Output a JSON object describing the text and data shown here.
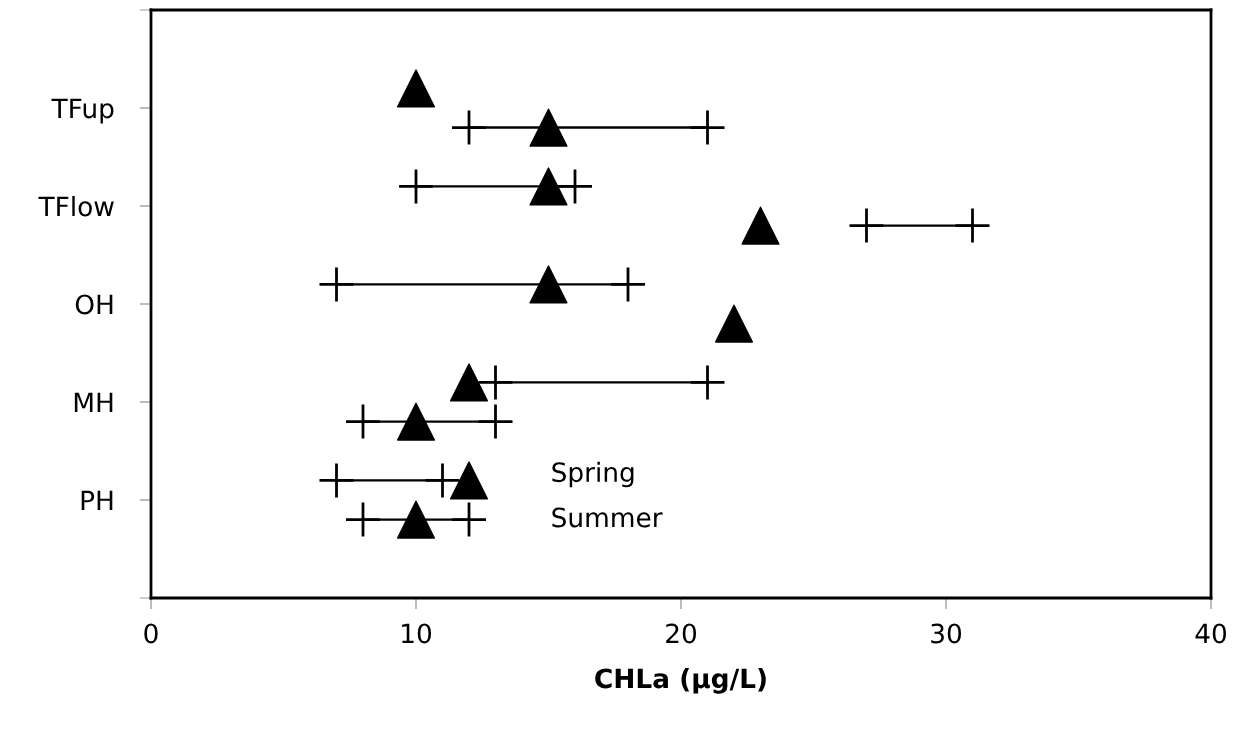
{
  "chart_data": {
    "type": "scatter",
    "orientation": "horizontal",
    "xlabel": "CHLa (µg/L)",
    "categories": [
      "TFup",
      "TFlow",
      "OH",
      "MH",
      "PH"
    ],
    "xlim": [
      0,
      40
    ],
    "xticks": [
      0,
      10,
      20,
      30,
      40
    ],
    "grid": false,
    "legend": false,
    "annotations": [
      "Spring",
      "Summer"
    ],
    "series": [
      {
        "marker": "triangle",
        "color": "#000000",
        "values": [
          10,
          15,
          15,
          12,
          12
        ]
      },
      {
        "type": "bar",
        "marker": "cross",
        "color": "#000000",
        "base": [
          null,
          10,
          7,
          13,
          7
        ],
        "values": [
          null,
          6,
          11,
          8,
          4
        ]
      },
      {
        "marker": "triangle",
        "color": "#000000",
        "values": [
          15,
          23,
          22,
          10,
          10
        ]
      },
      {
        "type": "bar",
        "marker": "cross",
        "color": "#000000",
        "base": [
          12,
          27,
          null,
          8,
          8
        ],
        "values": [
          9,
          4,
          null,
          5,
          4
        ]
      }
    ]
  }
}
